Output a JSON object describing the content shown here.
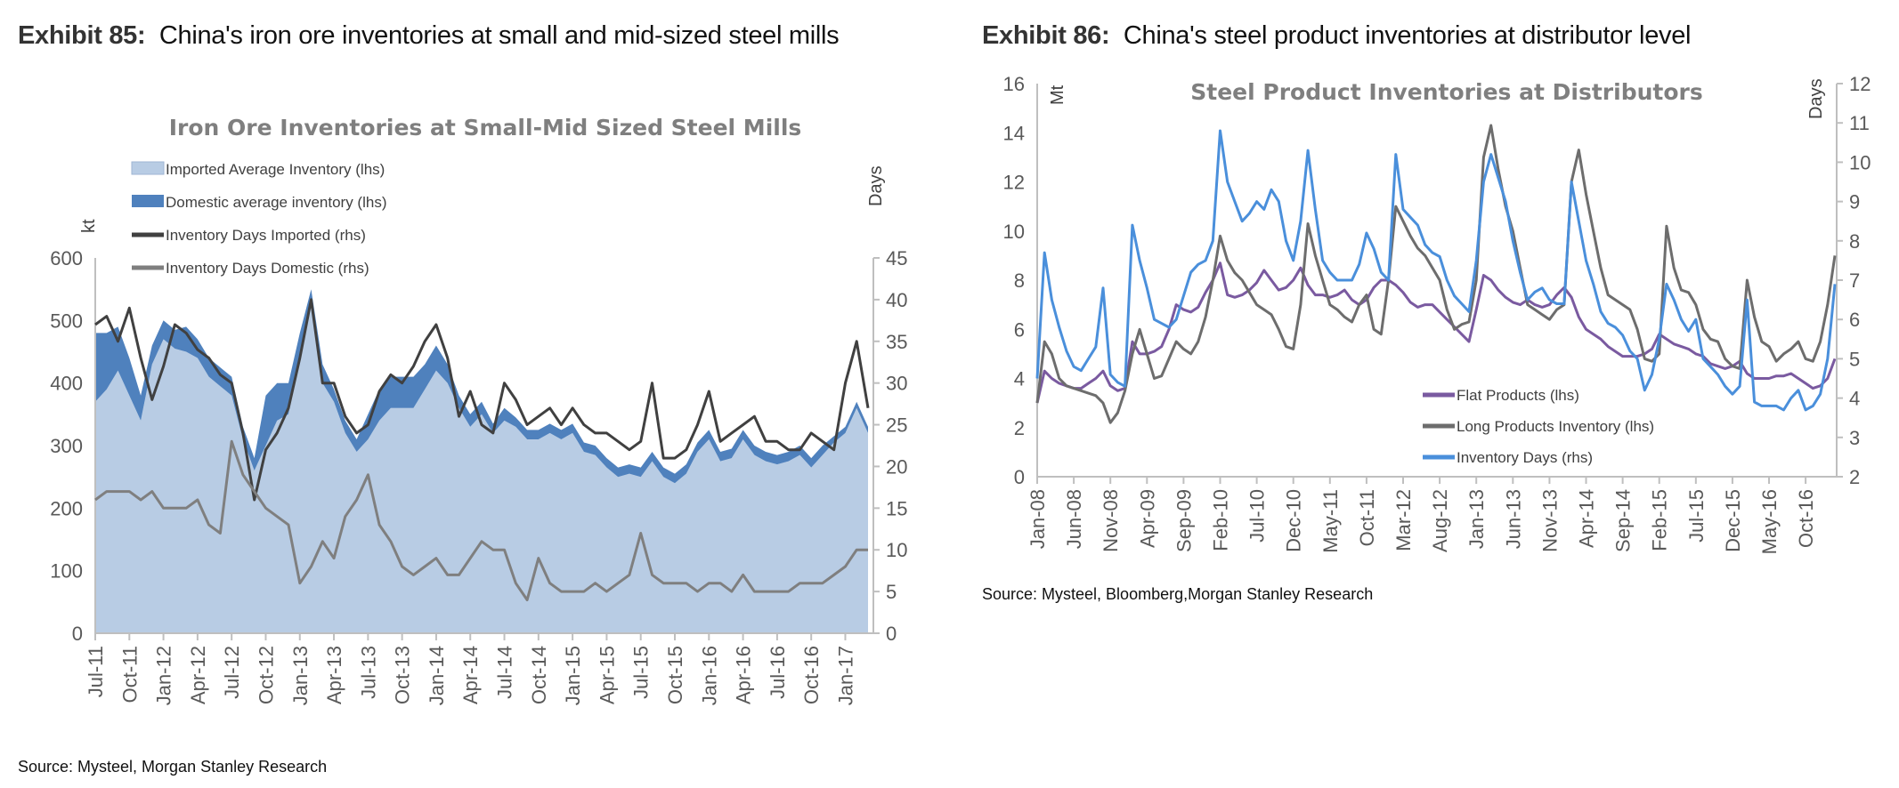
{
  "exhibits": [
    {
      "label": "Exhibit 85:",
      "caption": "China's iron ore inventories at small and mid-sized steel mills",
      "source": "Source: Mysteel, Morgan Stanley Research"
    },
    {
      "label": "Exhibit 86:",
      "caption": "China's steel product inventories at distributor level",
      "source": "Source: Mysteel, Bloomberg,Morgan Stanley Research"
    }
  ],
  "colors": {
    "imported_area": "#b8cce4",
    "domestic_area": "#4f81bd",
    "days_imported": "#404040",
    "days_domestic": "#7f7f7f",
    "flat": "#7a5aa0",
    "long": "#6d6d6d",
    "days": "#4a8fdb"
  },
  "chart_data": [
    {
      "type": "area",
      "title": "Iron Ore Inventories at Small-Mid Sized Steel Mills",
      "ylabel": "kt",
      "y2label": "Days",
      "ylim": [
        0,
        600
      ],
      "yticks": [
        0,
        100,
        200,
        300,
        400,
        500,
        600
      ],
      "y2lim": [
        0,
        45
      ],
      "y2ticks": [
        0,
        5,
        10,
        15,
        20,
        25,
        30,
        35,
        40,
        45
      ],
      "x_start": "Jul-11",
      "x_frequency": "monthly",
      "xticks": [
        "Jul-11",
        "Oct-11",
        "Jan-12",
        "Apr-12",
        "Jul-12",
        "Oct-12",
        "Jan-13",
        "Apr-13",
        "Jul-13",
        "Oct-13",
        "Jan-14",
        "Apr-14",
        "Jul-14",
        "Oct-14",
        "Jan-15",
        "Apr-15",
        "Jul-15",
        "Oct-15",
        "Jan-16",
        "Apr-16",
        "Jul-16",
        "Oct-16",
        "Jan-17"
      ],
      "legend": "top-left",
      "series": [
        {
          "name": "Imported Average Inventory (lhs)",
          "axis": "left",
          "kind": "area",
          "values": [
            370,
            390,
            420,
            380,
            340,
            430,
            470,
            455,
            450,
            440,
            410,
            395,
            380,
            310,
            260,
            300,
            340,
            350,
            440,
            530,
            400,
            370,
            320,
            290,
            310,
            340,
            360,
            360,
            360,
            390,
            420,
            400,
            360,
            330,
            350,
            320,
            340,
            330,
            310,
            310,
            320,
            310,
            320,
            290,
            285,
            265,
            250,
            255,
            250,
            275,
            250,
            240,
            255,
            290,
            310,
            275,
            280,
            310,
            285,
            275,
            270,
            275,
            285,
            265,
            285,
            305,
            320,
            360,
            320
          ]
        },
        {
          "name": "Domestic average inventory (lhs)",
          "axis": "left",
          "kind": "stacked-area",
          "values": [
            110,
            90,
            70,
            60,
            40,
            30,
            30,
            30,
            40,
            30,
            30,
            30,
            30,
            20,
            20,
            80,
            60,
            50,
            40,
            20,
            30,
            20,
            20,
            20,
            40,
            50,
            50,
            50,
            50,
            40,
            40,
            30,
            20,
            20,
            20,
            15,
            20,
            15,
            15,
            15,
            15,
            15,
            15,
            15,
            15,
            15,
            15,
            15,
            15,
            15,
            15,
            15,
            15,
            15,
            15,
            15,
            15,
            15,
            15,
            15,
            15,
            15,
            15,
            15,
            15,
            10,
            10,
            10,
            10
          ]
        },
        {
          "name": "Inventory Days Imported (rhs)",
          "axis": "right",
          "kind": "line",
          "values": [
            37,
            38,
            35,
            39,
            33,
            28,
            32,
            37,
            36,
            34,
            33,
            31,
            30,
            24,
            16,
            22,
            24,
            27,
            33,
            40,
            30,
            30,
            26,
            24,
            25,
            29,
            31,
            30,
            32,
            35,
            37,
            33,
            26,
            29,
            25,
            24,
            30,
            28,
            25,
            26,
            27,
            25,
            27,
            25,
            24,
            24,
            23,
            22,
            23,
            30,
            21,
            21,
            22,
            25,
            29,
            23,
            24,
            25,
            26,
            23,
            23,
            22,
            22,
            24,
            23,
            22,
            30,
            35,
            27
          ]
        },
        {
          "name": "Inventory Days Domestic (rhs)",
          "axis": "right",
          "kind": "line",
          "values": [
            16,
            17,
            17,
            17,
            16,
            17,
            15,
            15,
            15,
            16,
            13,
            12,
            23,
            19,
            17,
            15,
            14,
            13,
            6,
            8,
            11,
            9,
            14,
            16,
            19,
            13,
            11,
            8,
            7,
            8,
            9,
            7,
            7,
            9,
            11,
            10,
            10,
            6,
            4,
            9,
            6,
            5,
            5,
            5,
            6,
            5,
            6,
            7,
            12,
            7,
            6,
            6,
            6,
            5,
            6,
            6,
            5,
            7,
            5,
            5,
            5,
            5,
            6,
            6,
            6,
            7,
            8,
            10,
            10
          ]
        }
      ]
    },
    {
      "type": "line",
      "title": "Steel Product Inventories at Distributors",
      "ylabel": "Mt",
      "y2label": "Days",
      "ylim": [
        0,
        16
      ],
      "yticks": [
        0,
        2,
        4,
        6,
        8,
        10,
        12,
        14,
        16
      ],
      "y2lim": [
        2,
        12
      ],
      "y2ticks": [
        2,
        3,
        4,
        5,
        6,
        7,
        8,
        9,
        10,
        11,
        12
      ],
      "x_start": "Jan-08",
      "x_frequency": "monthly",
      "xticks": [
        "Jan-08",
        "Jun-08",
        "Nov-08",
        "Apr-09",
        "Sep-09",
        "Feb-10",
        "Jul-10",
        "Dec-10",
        "May-11",
        "Oct-11",
        "Mar-12",
        "Aug-12",
        "Jan-13",
        "Jun-13",
        "Nov-13",
        "Apr-14",
        "Sep-14",
        "Feb-15",
        "Jul-15",
        "Dec-15",
        "May-16",
        "Oct-16"
      ],
      "legend": "bottom-center",
      "series": [
        {
          "name": "Flat Products (lhs)",
          "axis": "left",
          "values": [
            3.0,
            4.3,
            4.0,
            3.8,
            3.7,
            3.6,
            3.6,
            3.8,
            4.0,
            4.3,
            3.7,
            3.5,
            3.6,
            5.5,
            5.0,
            5.0,
            5.1,
            5.3,
            6.0,
            7.0,
            6.8,
            6.7,
            6.9,
            7.5,
            8.0,
            8.7,
            7.4,
            7.3,
            7.4,
            7.6,
            7.9,
            8.4,
            8.0,
            7.6,
            7.7,
            8.0,
            8.5,
            7.8,
            7.4,
            7.4,
            7.3,
            7.4,
            7.6,
            7.2,
            7.0,
            7.2,
            7.7,
            8.0,
            8.0,
            7.8,
            7.5,
            7.1,
            6.9,
            7.0,
            7.0,
            6.7,
            6.4,
            6.1,
            5.8,
            5.5,
            6.8,
            8.2,
            8.0,
            7.6,
            7.3,
            7.1,
            7.0,
            7.2,
            7.0,
            6.9,
            7.0,
            7.4,
            7.7,
            7.3,
            6.5,
            6.0,
            5.8,
            5.6,
            5.3,
            5.1,
            4.9,
            4.9,
            4.9,
            5.0,
            5.2,
            5.8,
            5.6,
            5.4,
            5.3,
            5.2,
            5.0,
            4.9,
            4.6,
            4.5,
            4.4,
            4.5,
            4.7,
            4.2,
            4.0,
            4.0,
            4.0,
            4.1,
            4.1,
            4.2,
            4.0,
            3.8,
            3.6,
            3.7,
            4.0,
            4.8
          ]
        },
        {
          "name": "Long Products Inventory (lhs)",
          "axis": "left",
          "values": [
            3.0,
            5.5,
            5.0,
            4.0,
            3.7,
            3.6,
            3.5,
            3.4,
            3.3,
            3.0,
            2.2,
            2.6,
            3.5,
            5.0,
            6.0,
            5.0,
            4.0,
            4.1,
            4.8,
            5.5,
            5.2,
            5.0,
            5.5,
            6.5,
            8.0,
            9.8,
            8.8,
            8.3,
            8.0,
            7.5,
            7.0,
            6.8,
            6.6,
            6.0,
            5.3,
            5.2,
            7.0,
            10.3,
            9.0,
            8.0,
            7.0,
            6.8,
            6.5,
            6.3,
            7.0,
            7.4,
            6.0,
            5.8,
            8.0,
            11.0,
            10.4,
            9.8,
            9.3,
            9.0,
            8.5,
            8.0,
            6.8,
            6.0,
            6.2,
            6.3,
            8.0,
            13.0,
            14.3,
            12.5,
            11.0,
            10.0,
            8.5,
            7.0,
            6.8,
            6.6,
            6.4,
            6.8,
            7.0,
            12.0,
            13.3,
            11.5,
            10.0,
            8.5,
            7.4,
            7.2,
            7.0,
            6.8,
            6.0,
            4.8,
            4.7,
            5.0,
            10.2,
            8.5,
            7.6,
            7.5,
            7.0,
            6.0,
            5.6,
            5.5,
            4.8,
            4.5,
            4.4,
            8.0,
            6.5,
            5.5,
            5.3,
            4.7,
            5.0,
            5.2,
            5.5,
            4.8,
            4.7,
            5.5,
            7.0,
            9.0
          ]
        },
        {
          "name": "Inventory Days (rhs)",
          "axis": "right",
          "values": [
            4.5,
            7.7,
            6.5,
            5.8,
            5.2,
            4.8,
            4.7,
            5.0,
            5.3,
            6.8,
            4.6,
            4.4,
            4.3,
            8.4,
            7.5,
            6.8,
            6.0,
            5.9,
            5.8,
            6.0,
            6.6,
            7.2,
            7.4,
            7.5,
            8.0,
            10.8,
            9.5,
            9.0,
            8.5,
            8.7,
            9.0,
            8.8,
            9.3,
            9.0,
            8.0,
            7.5,
            8.5,
            10.3,
            8.8,
            7.5,
            7.2,
            7.0,
            7.0,
            7.0,
            7.4,
            8.2,
            7.8,
            7.2,
            7.0,
            10.2,
            8.8,
            8.6,
            8.4,
            7.9,
            7.7,
            7.6,
            7.0,
            6.6,
            6.4,
            6.2,
            7.5,
            9.5,
            10.2,
            9.6,
            9.0,
            8.0,
            7.2,
            6.5,
            6.7,
            6.8,
            6.5,
            6.4,
            6.4,
            9.5,
            8.5,
            7.5,
            6.9,
            6.2,
            5.9,
            5.8,
            5.6,
            5.2,
            5.0,
            4.2,
            4.6,
            5.5,
            6.9,
            6.5,
            6.0,
            5.7,
            6.0,
            5.0,
            4.8,
            4.6,
            4.3,
            4.1,
            4.3,
            6.5,
            3.9,
            3.8,
            3.8,
            3.8,
            3.7,
            4.0,
            4.2,
            3.7,
            3.8,
            4.1,
            5.0,
            6.9
          ]
        }
      ]
    }
  ]
}
